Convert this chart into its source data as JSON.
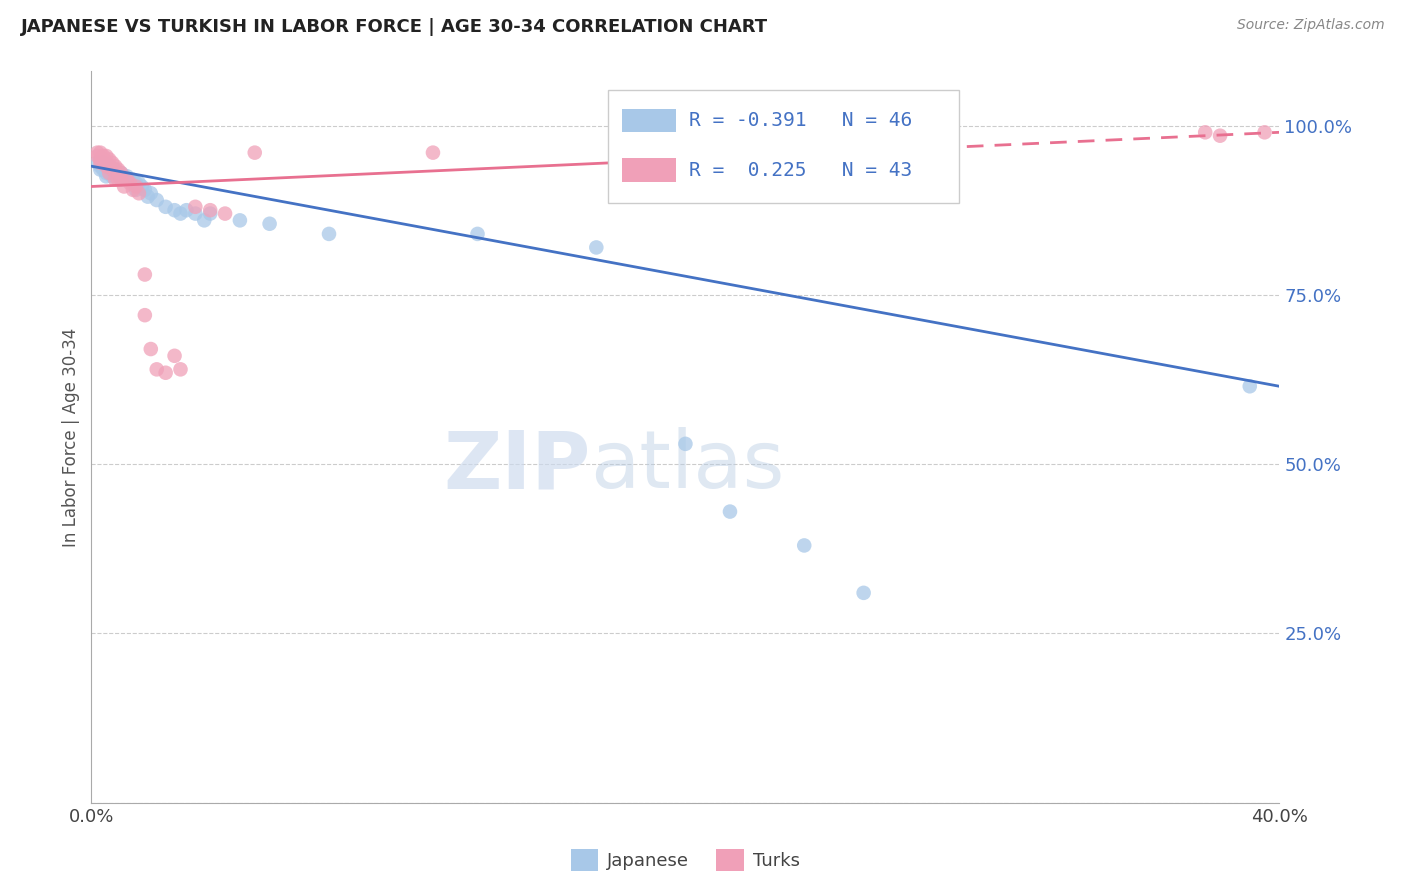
{
  "title": "JAPANESE VS TURKISH IN LABOR FORCE | AGE 30-34 CORRELATION CHART",
  "source": "Source: ZipAtlas.com",
  "ylabel_label": "In Labor Force | Age 30-34",
  "x_min": 0.0,
  "x_max": 0.4,
  "y_min": 0.0,
  "y_max": 1.08,
  "x_ticks": [
    0.0,
    0.05,
    0.1,
    0.15,
    0.2,
    0.25,
    0.3,
    0.35,
    0.4
  ],
  "y_ticks": [
    0.0,
    0.25,
    0.5,
    0.75,
    1.0
  ],
  "grid_color": "#cccccc",
  "background_color": "#ffffff",
  "watermark_zip": "ZIP",
  "watermark_atlas": "atlas",
  "legend_R_japanese": "-0.391",
  "legend_N_japanese": "46",
  "legend_R_turks": "0.225",
  "legend_N_turks": "43",
  "japanese_color": "#a8c8e8",
  "turks_color": "#f0a0b8",
  "japanese_line_color": "#4472c4",
  "turks_line_color": "#e87090",
  "japanese_scatter": [
    [
      0.002,
      0.945
    ],
    [
      0.003,
      0.94
    ],
    [
      0.003,
      0.935
    ],
    [
      0.004,
      0.945
    ],
    [
      0.004,
      0.935
    ],
    [
      0.005,
      0.94
    ],
    [
      0.005,
      0.93
    ],
    [
      0.005,
      0.925
    ],
    [
      0.006,
      0.94
    ],
    [
      0.006,
      0.93
    ],
    [
      0.007,
      0.935
    ],
    [
      0.007,
      0.925
    ],
    [
      0.008,
      0.935
    ],
    [
      0.008,
      0.93
    ],
    [
      0.009,
      0.93
    ],
    [
      0.01,
      0.93
    ],
    [
      0.01,
      0.92
    ],
    [
      0.011,
      0.925
    ],
    [
      0.012,
      0.925
    ],
    [
      0.013,
      0.92
    ],
    [
      0.014,
      0.92
    ],
    [
      0.015,
      0.915
    ],
    [
      0.015,
      0.905
    ],
    [
      0.016,
      0.915
    ],
    [
      0.017,
      0.91
    ],
    [
      0.018,
      0.905
    ],
    [
      0.019,
      0.895
    ],
    [
      0.02,
      0.9
    ],
    [
      0.022,
      0.89
    ],
    [
      0.025,
      0.88
    ],
    [
      0.028,
      0.875
    ],
    [
      0.03,
      0.87
    ],
    [
      0.032,
      0.875
    ],
    [
      0.035,
      0.87
    ],
    [
      0.038,
      0.86
    ],
    [
      0.04,
      0.87
    ],
    [
      0.05,
      0.86
    ],
    [
      0.06,
      0.855
    ],
    [
      0.08,
      0.84
    ],
    [
      0.13,
      0.84
    ],
    [
      0.17,
      0.82
    ],
    [
      0.2,
      0.53
    ],
    [
      0.215,
      0.43
    ],
    [
      0.24,
      0.38
    ],
    [
      0.26,
      0.31
    ],
    [
      0.39,
      0.615
    ]
  ],
  "turks_scatter": [
    [
      0.002,
      0.96
    ],
    [
      0.002,
      0.955
    ],
    [
      0.003,
      0.96
    ],
    [
      0.003,
      0.95
    ],
    [
      0.003,
      0.945
    ],
    [
      0.004,
      0.955
    ],
    [
      0.004,
      0.95
    ],
    [
      0.005,
      0.955
    ],
    [
      0.005,
      0.945
    ],
    [
      0.005,
      0.94
    ],
    [
      0.006,
      0.95
    ],
    [
      0.006,
      0.94
    ],
    [
      0.006,
      0.93
    ],
    [
      0.007,
      0.945
    ],
    [
      0.007,
      0.935
    ],
    [
      0.008,
      0.94
    ],
    [
      0.008,
      0.92
    ],
    [
      0.009,
      0.935
    ],
    [
      0.009,
      0.92
    ],
    [
      0.01,
      0.93
    ],
    [
      0.01,
      0.92
    ],
    [
      0.011,
      0.91
    ],
    [
      0.012,
      0.92
    ],
    [
      0.013,
      0.915
    ],
    [
      0.014,
      0.905
    ],
    [
      0.015,
      0.91
    ],
    [
      0.016,
      0.9
    ],
    [
      0.018,
      0.78
    ],
    [
      0.018,
      0.72
    ],
    [
      0.02,
      0.67
    ],
    [
      0.022,
      0.64
    ],
    [
      0.025,
      0.635
    ],
    [
      0.028,
      0.66
    ],
    [
      0.03,
      0.64
    ],
    [
      0.035,
      0.88
    ],
    [
      0.04,
      0.875
    ],
    [
      0.045,
      0.87
    ],
    [
      0.055,
      0.96
    ],
    [
      0.115,
      0.96
    ],
    [
      0.185,
      0.96
    ],
    [
      0.375,
      0.99
    ],
    [
      0.38,
      0.985
    ],
    [
      0.395,
      0.99
    ]
  ],
  "japanese_trendline": [
    [
      0.0,
      0.94
    ],
    [
      0.4,
      0.615
    ]
  ],
  "turks_trendline": [
    [
      0.0,
      0.91
    ],
    [
      0.4,
      0.99
    ]
  ],
  "turks_trendline_dashed_start": 0.22
}
